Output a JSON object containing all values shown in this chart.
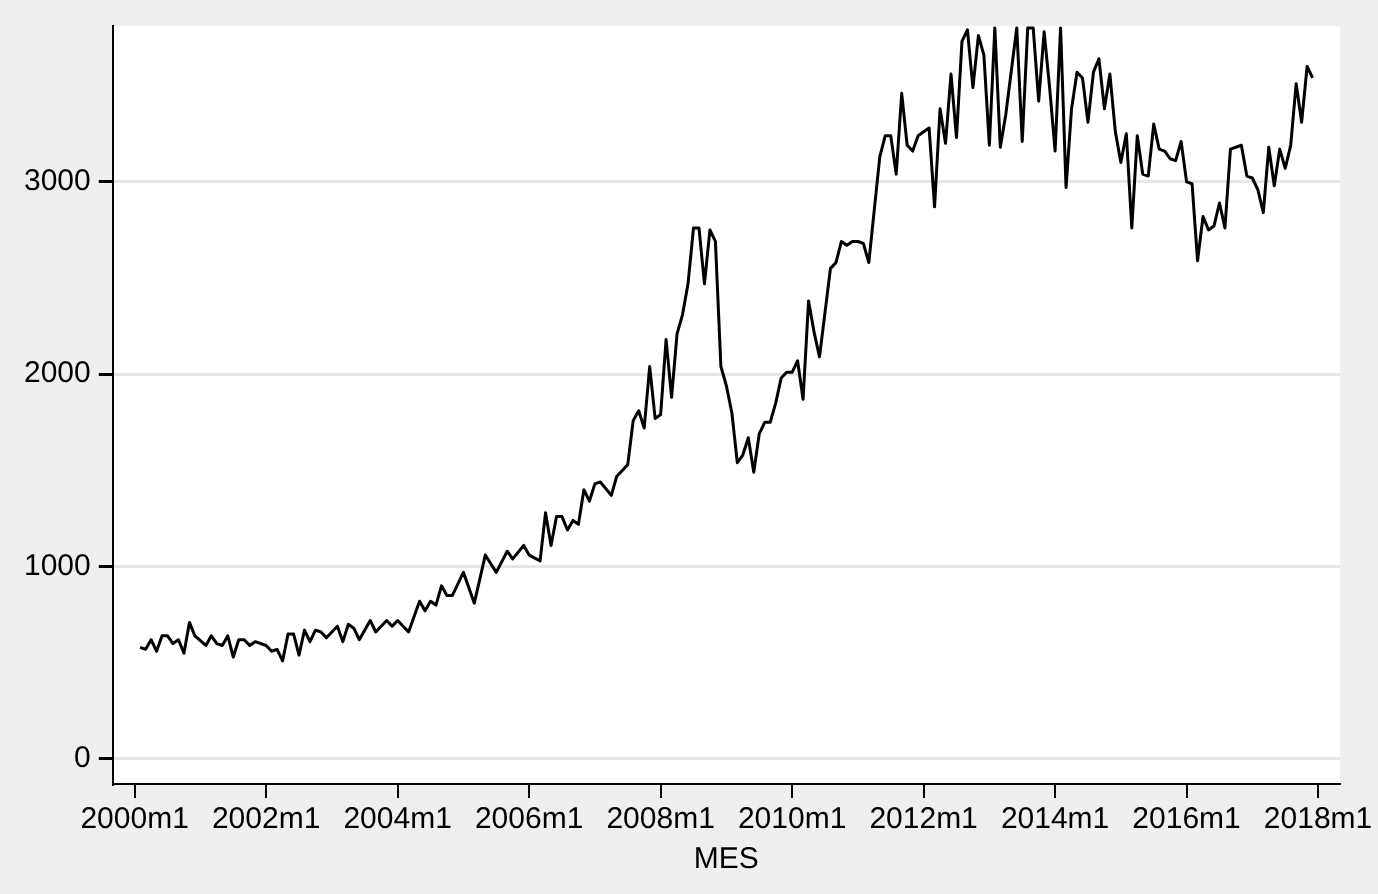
{
  "chart_data": {
    "type": "line",
    "xlabel": "MES",
    "x": [
      "2000-02",
      "2000-03",
      "2000-04",
      "2000-05",
      "2000-06",
      "2000-07",
      "2000-08",
      "2000-09",
      "2000-10",
      "2000-11",
      "2000-12",
      "2001-02",
      "2001-03",
      "2001-04",
      "2001-05",
      "2001-06",
      "2001-07",
      "2001-08",
      "2001-09",
      "2001-10",
      "2001-11",
      "2002-01",
      "2002-02",
      "2002-03",
      "2002-04",
      "2002-05",
      "2002-06",
      "2002-07",
      "2002-08",
      "2002-09",
      "2002-10",
      "2002-11",
      "2002-12",
      "2003-02",
      "2003-03",
      "2003-04",
      "2003-05",
      "2003-06",
      "2003-08",
      "2003-09",
      "2003-11",
      "2003-12",
      "2004-01",
      "2004-02",
      "2004-03",
      "2004-05",
      "2004-06",
      "2004-07",
      "2004-08",
      "2004-09",
      "2004-10",
      "2004-11",
      "2005-01",
      "2005-03",
      "2005-05",
      "2005-07",
      "2005-09",
      "2005-10",
      "2005-12",
      "2006-01",
      "2006-03",
      "2006-04",
      "2006-05",
      "2006-06",
      "2006-07",
      "2006-08",
      "2006-09",
      "2006-10",
      "2006-11",
      "2006-12",
      "2007-01",
      "2007-02",
      "2007-04",
      "2007-05",
      "2007-06",
      "2007-07",
      "2007-08",
      "2007-09",
      "2007-10",
      "2007-11",
      "2007-12",
      "2008-01",
      "2008-02",
      "2008-03",
      "2008-04",
      "2008-05",
      "2008-06",
      "2008-07",
      "2008-08",
      "2008-09",
      "2008-10",
      "2008-11",
      "2008-12",
      "2009-01",
      "2009-02",
      "2009-03",
      "2009-04",
      "2009-05",
      "2009-06",
      "2009-07",
      "2009-08",
      "2009-09",
      "2009-10",
      "2009-11",
      "2009-12",
      "2010-01",
      "2010-02",
      "2010-03",
      "2010-04",
      "2010-05",
      "2010-06",
      "2010-08",
      "2010-09",
      "2010-10",
      "2010-11",
      "2010-12",
      "2011-01",
      "2011-02",
      "2011-03",
      "2011-05",
      "2011-06",
      "2011-07",
      "2011-08",
      "2011-09",
      "2011-10",
      "2011-11",
      "2011-12",
      "2012-01",
      "2012-02",
      "2012-03",
      "2012-04",
      "2012-05",
      "2012-06",
      "2012-07",
      "2012-08",
      "2012-09",
      "2012-10",
      "2012-11",
      "2012-12",
      "2013-01",
      "2013-02",
      "2013-03",
      "2013-04",
      "2013-06",
      "2013-07",
      "2013-08",
      "2013-09",
      "2013-10",
      "2013-11",
      "2013-12",
      "2014-01",
      "2014-02",
      "2014-03",
      "2014-04",
      "2014-05",
      "2014-06",
      "2014-07",
      "2014-08",
      "2014-09",
      "2014-10",
      "2014-11",
      "2014-12",
      "2015-01",
      "2015-02",
      "2015-03",
      "2015-04",
      "2015-05",
      "2015-06",
      "2015-07",
      "2015-08",
      "2015-09",
      "2015-10",
      "2015-11",
      "2015-12",
      "2016-01",
      "2016-02",
      "2016-03",
      "2016-04",
      "2016-05",
      "2016-06",
      "2016-07",
      "2016-08",
      "2016-09",
      "2016-11",
      "2016-12",
      "2017-01",
      "2017-02",
      "2017-03",
      "2017-04",
      "2017-05",
      "2017-06",
      "2017-07",
      "2017-08",
      "2017-09",
      "2017-10",
      "2017-11",
      "2017-12"
    ],
    "values": [
      580,
      570,
      620,
      560,
      640,
      640,
      600,
      620,
      550,
      710,
      640,
      590,
      640,
      600,
      590,
      640,
      530,
      620,
      620,
      590,
      610,
      590,
      560,
      570,
      510,
      650,
      650,
      540,
      670,
      610,
      670,
      660,
      630,
      690,
      610,
      700,
      680,
      620,
      720,
      660,
      720,
      690,
      720,
      690,
      660,
      820,
      770,
      820,
      800,
      900,
      850,
      850,
      970,
      810,
      1060,
      970,
      1080,
      1040,
      1110,
      1060,
      1030,
      1280,
      1110,
      1260,
      1260,
      1190,
      1240,
      1220,
      1400,
      1340,
      1430,
      1440,
      1370,
      1470,
      1500,
      1530,
      1760,
      1810,
      1720,
      2040,
      1770,
      1790,
      2180,
      1880,
      2210,
      2310,
      2470,
      2760,
      2760,
      2470,
      2750,
      2690,
      2040,
      1940,
      1800,
      1540,
      1580,
      1670,
      1490,
      1690,
      1750,
      1750,
      1850,
      1980,
      2010,
      2010,
      2070,
      1870,
      2380,
      2220,
      2090,
      2550,
      2580,
      2690,
      2670,
      2690,
      2690,
      2680,
      2580,
      3130,
      3240,
      3240,
      3040,
      3460,
      3190,
      3160,
      3240,
      3260,
      3280,
      2870,
      3380,
      3200,
      3560,
      3230,
      3730,
      3790,
      3490,
      3760,
      3660,
      3190,
      3800,
      3180,
      3350,
      3800,
      3210,
      3800,
      3800,
      3420,
      3780,
      3490,
      3160,
      3800,
      2970,
      3380,
      3570,
      3540,
      3310,
      3570,
      3640,
      3380,
      3560,
      3260,
      3100,
      3250,
      2760,
      3240,
      3040,
      3030,
      3300,
      3170,
      3160,
      3120,
      3110,
      3210,
      3000,
      2990,
      2590,
      2820,
      2750,
      2770,
      2890,
      2760,
      3170,
      3190,
      3030,
      3020,
      2960,
      2840,
      3180,
      2980,
      3170,
      3070,
      3190,
      3510,
      3310,
      3600,
      3540
    ],
    "color": "#000000",
    "xlim": [
      "1999-09",
      "2018-05"
    ],
    "xticks": [
      {
        "value": "2000-01",
        "label": "2000m1"
      },
      {
        "value": "2002-01",
        "label": "2002m1"
      },
      {
        "value": "2004-01",
        "label": "2004m1"
      },
      {
        "value": "2006-01",
        "label": "2006m1"
      },
      {
        "value": "2008-01",
        "label": "2008m1"
      },
      {
        "value": "2010-01",
        "label": "2010m1"
      },
      {
        "value": "2012-01",
        "label": "2012m1"
      },
      {
        "value": "2014-01",
        "label": "2014m1"
      },
      {
        "value": "2016-01",
        "label": "2016m1"
      },
      {
        "value": "2018-01",
        "label": "2018m1"
      }
    ],
    "ylim": [
      -130,
      3810
    ],
    "yticks": [
      0,
      1000,
      2000,
      3000
    ],
    "grid": "y",
    "legend": false
  }
}
